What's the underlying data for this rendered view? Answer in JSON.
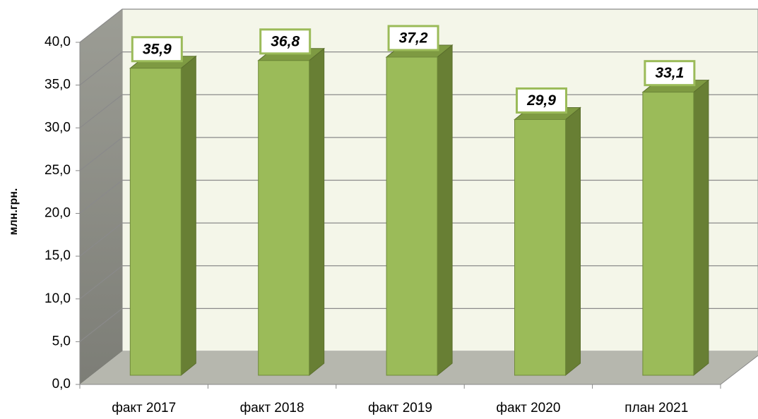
{
  "chart_data": {
    "type": "bar3d",
    "ylabel": "млн.грн.",
    "categories": [
      "факт 2017",
      "факт 2018",
      "факт 2019",
      "факт 2020",
      "план 2021"
    ],
    "values": [
      35.9,
      36.8,
      37.2,
      29.9,
      33.1
    ],
    "value_labels": [
      "35,9",
      "36,8",
      "37,2",
      "29,9",
      "33,1"
    ],
    "color": "#9bbb59",
    "ylim": [
      0,
      40
    ],
    "yticks": [
      {
        "value": 0,
        "label": "0,0"
      },
      {
        "value": 5,
        "label": "5,0"
      },
      {
        "value": 10,
        "label": "10,0"
      },
      {
        "value": 15,
        "label": "15,0"
      },
      {
        "value": 20,
        "label": "20,0"
      },
      {
        "value": 25,
        "label": "25,0"
      },
      {
        "value": 30,
        "label": "30,0"
      },
      {
        "value": 35,
        "label": "35,0"
      },
      {
        "value": 40,
        "label": "40,0"
      }
    ],
    "grid": true
  }
}
